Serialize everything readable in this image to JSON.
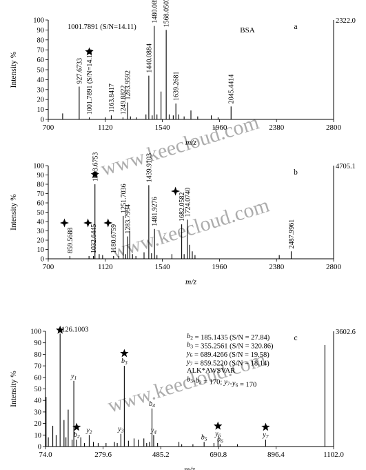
{
  "watermark": "www.keecloud.com",
  "chart_data": [
    {
      "panel": "a",
      "type": "bar",
      "sample_label": "BSA",
      "max_intensity_label": "2322.0",
      "ylabel": "Intensity %",
      "xlabel": "m/z",
      "xlim": [
        700,
        2800
      ],
      "ylim": [
        0,
        100
      ],
      "x_ticks": [
        "700",
        "1120",
        "1540",
        "1960",
        "2380",
        "2800"
      ],
      "y_ticks": [
        "0",
        "10",
        "20",
        "30",
        "40",
        "50",
        "60",
        "70",
        "80",
        "90",
        "100"
      ],
      "top_annotation": "1001.7891 (S/N=14.11)",
      "peaks": [
        {
          "x": 806,
          "y": 6
        },
        {
          "x": 927.6733,
          "y": 33,
          "label": "927.6733"
        },
        {
          "x": 1001.7891,
          "y": 2,
          "label": "1001.7891 (S/N=14.11)",
          "marker": "star"
        },
        {
          "x": 1120,
          "y": 2
        },
        {
          "x": 1163.8417,
          "y": 4,
          "label": "1163.8417"
        },
        {
          "x": 1249.8822,
          "y": 2,
          "label": "1249.8822"
        },
        {
          "x": 1283.9592,
          "y": 17,
          "label": "1283.9592"
        },
        {
          "x": 1305,
          "y": 3
        },
        {
          "x": 1350,
          "y": 2
        },
        {
          "x": 1419,
          "y": 5
        },
        {
          "x": 1440.0884,
          "y": 44,
          "label": "1440.0884"
        },
        {
          "x": 1465,
          "y": 4
        },
        {
          "x": 1480.0852,
          "y": 94,
          "label": "1480.0852"
        },
        {
          "x": 1500,
          "y": 5
        },
        {
          "x": 1530,
          "y": 28
        },
        {
          "x": 1568.0507,
          "y": 90,
          "label": "1568.0507"
        },
        {
          "x": 1590,
          "y": 5
        },
        {
          "x": 1620,
          "y": 4
        },
        {
          "x": 1639.2681,
          "y": 16,
          "label": "1639.2681"
        },
        {
          "x": 1660,
          "y": 5
        },
        {
          "x": 1700,
          "y": 3
        },
        {
          "x": 1750,
          "y": 9
        },
        {
          "x": 1800,
          "y": 3
        },
        {
          "x": 1900,
          "y": 4
        },
        {
          "x": 1950,
          "y": 2
        },
        {
          "x": 2045.4414,
          "y": 13,
          "label": "2045.4414"
        }
      ]
    },
    {
      "panel": "b",
      "type": "bar",
      "max_intensity_label": "4705.1",
      "ylabel": "Intensity %",
      "xlabel": "m/z",
      "xlim": [
        700,
        2800
      ],
      "ylim": [
        0,
        100
      ],
      "x_ticks": [
        "700",
        "1120",
        "1540",
        "1960",
        "2380",
        "2800"
      ],
      "y_ticks": [
        "0",
        "10",
        "20",
        "30",
        "40",
        "50",
        "60",
        "70",
        "80",
        "90",
        "100"
      ],
      "peaks": [
        {
          "x": 859.5688,
          "y": 3,
          "label": "859.5688",
          "marker": "cross"
        },
        {
          "x": 1000,
          "y": 3
        },
        {
          "x": 1032.6445,
          "y": 3,
          "label": "1032.6445",
          "marker": "cross"
        },
        {
          "x": 1043.6753,
          "y": 80,
          "label": "1043.6753",
          "marker": "star"
        },
        {
          "x": 1075,
          "y": 5
        },
        {
          "x": 1100,
          "y": 4
        },
        {
          "x": 1180.6759,
          "y": 3,
          "label": "1180.6759",
          "marker": "cross"
        },
        {
          "x": 1220,
          "y": 3
        },
        {
          "x": 1251.7036,
          "y": 46,
          "label": "1251.7036"
        },
        {
          "x": 1270,
          "y": 5
        },
        {
          "x": 1283.7994,
          "y": 24,
          "label": "1283.7994"
        },
        {
          "x": 1300,
          "y": 30
        },
        {
          "x": 1320,
          "y": 5
        },
        {
          "x": 1345,
          "y": 3
        },
        {
          "x": 1405,
          "y": 7
        },
        {
          "x": 1439.9103,
          "y": 79,
          "label": "1439.9103"
        },
        {
          "x": 1460,
          "y": 6
        },
        {
          "x": 1481.9276,
          "y": 32,
          "label": "1481.9276"
        },
        {
          "x": 1500,
          "y": 4
        },
        {
          "x": 1610,
          "y": 5
        },
        {
          "x": 1682.0582,
          "y": 37,
          "label": "1682.0582",
          "marker": "cross"
        },
        {
          "x": 1700,
          "y": 5
        },
        {
          "x": 1724.074,
          "y": 42,
          "label": "1724.0740"
        },
        {
          "x": 1740,
          "y": 15
        },
        {
          "x": 1760,
          "y": 8
        },
        {
          "x": 1780,
          "y": 4
        },
        {
          "x": 2400,
          "y": 4
        },
        {
          "x": 2487.9961,
          "y": 8,
          "label": "2487.9961"
        }
      ]
    },
    {
      "panel": "c",
      "type": "bar",
      "max_intensity_label": "3602.6",
      "ylabel": "Intensity %",
      "xlabel": "m/z",
      "xlim": [
        74.0,
        1102.0
      ],
      "ylim": [
        0,
        100
      ],
      "x_ticks": [
        "74.0",
        "279.6",
        "485.2",
        "690.8",
        "896.4",
        "1102.0"
      ],
      "y_ticks": [
        "0",
        "10",
        "20",
        "30",
        "40",
        "50",
        "60",
        "70",
        "80",
        "90",
        "100"
      ],
      "info_lines": [
        "b2 = 185.1435 (S/N = 27.84)",
        "b3 = 355.2561 (S/N = 320.86)",
        "y6 = 689.4266 (S/N = 19.58)",
        "y7 = 859.5220 (S/N = 18.14)",
        "ALK*AWSVAR",
        "b3-b2 = 170; y7-y6 = 170"
      ],
      "peaks": [
        {
          "x": 76,
          "y": 43
        },
        {
          "x": 84,
          "y": 8
        },
        {
          "x": 100,
          "y": 18
        },
        {
          "x": 112,
          "y": 10
        },
        {
          "x": 126.1003,
          "y": 98,
          "label": "126.1003",
          "marker": "star"
        },
        {
          "x": 140,
          "y": 23
        },
        {
          "x": 147,
          "y": 8
        },
        {
          "x": 155,
          "y": 32
        },
        {
          "x": 169,
          "y": 6
        },
        {
          "x": 175.1,
          "y": 57,
          "ion_label": "y1"
        },
        {
          "x": 185.1435,
          "y": 6,
          "ion_label": "b2",
          "marker": "star"
        },
        {
          "x": 200,
          "y": 8
        },
        {
          "x": 213,
          "y": 3
        },
        {
          "x": 230,
          "y": 10,
          "ion_label": "y2"
        },
        {
          "x": 245,
          "y": 4
        },
        {
          "x": 262,
          "y": 3
        },
        {
          "x": 290,
          "y": 3
        },
        {
          "x": 320,
          "y": 4
        },
        {
          "x": 330,
          "y": 3
        },
        {
          "x": 343,
          "y": 11,
          "ion_label": "y3"
        },
        {
          "x": 355.2561,
          "y": 70,
          "ion_label": "b3",
          "marker": "star"
        },
        {
          "x": 370,
          "y": 5
        },
        {
          "x": 390,
          "y": 7
        },
        {
          "x": 405,
          "y": 6
        },
        {
          "x": 425,
          "y": 7
        },
        {
          "x": 435,
          "y": 3
        },
        {
          "x": 445,
          "y": 4
        },
        {
          "x": 454,
          "y": 33,
          "ion_label": "b4"
        },
        {
          "x": 460,
          "y": 10,
          "ion_label": "y4"
        },
        {
          "x": 474,
          "y": 3
        },
        {
          "x": 550,
          "y": 4
        },
        {
          "x": 560,
          "y": 2
        },
        {
          "x": 600,
          "y": 2
        },
        {
          "x": 640,
          "y": 4,
          "ion_label": "b5"
        },
        {
          "x": 675,
          "y": 3
        },
        {
          "x": 689.4266,
          "y": 7,
          "ion_label": "y6",
          "marker": "star"
        },
        {
          "x": 697,
          "y": 2,
          "ion_label": "b6"
        },
        {
          "x": 759,
          "y": 2
        },
        {
          "x": 859.522,
          "y": 6,
          "ion_label": "y7",
          "marker": "star"
        },
        {
          "x": 1071,
          "y": 88
        }
      ]
    }
  ]
}
